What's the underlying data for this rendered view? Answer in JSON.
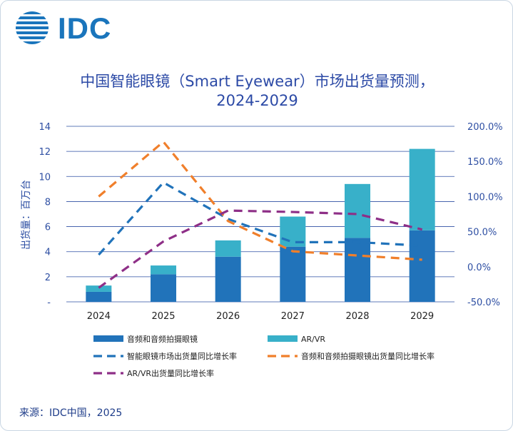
{
  "brand": {
    "logo_text": "IDC"
  },
  "title_line1": "中国智能眼镜（Smart Eyewear）市场出货量预测，",
  "title_line2": "2024-2029",
  "source": "来源：IDC中国，2025",
  "chart_data": {
    "type": "bar",
    "stacked": true,
    "categories": [
      "2024",
      "2025",
      "2026",
      "2027",
      "2028",
      "2029"
    ],
    "ylabel": "出货量：百万台",
    "ylim": [
      0,
      14
    ],
    "y_ticks": [
      "-",
      "2",
      "4",
      "6",
      "8",
      "10",
      "12",
      "14"
    ],
    "y2lim": [
      -50,
      200
    ],
    "y2_ticks": [
      "-50.0%",
      "0.0%",
      "50.0%",
      "100.0%",
      "150.0%",
      "200.0%"
    ],
    "grid": true,
    "legend_position": "bottom",
    "series": [
      {
        "name": "音频和音频拍摄眼镜",
        "kind": "bar",
        "axis": "left",
        "color": "#2173ba",
        "values": [
          0.8,
          2.2,
          3.6,
          4.4,
          5.1,
          5.7
        ]
      },
      {
        "name": "AR/VR",
        "kind": "bar",
        "axis": "left",
        "color": "#38b0c9",
        "values": [
          0.5,
          0.7,
          1.3,
          2.4,
          4.3,
          6.5
        ]
      },
      {
        "name": "智能眼镜市场出货量同比增长率",
        "kind": "line",
        "dashed": true,
        "axis": "right",
        "color": "#2173ba",
        "values": [
          17,
          120,
          68,
          35,
          35,
          30
        ]
      },
      {
        "name": "音频和音频拍摄眼镜出货量同比增长率",
        "kind": "line",
        "dashed": true,
        "axis": "right",
        "color": "#f07f2b",
        "values": [
          100,
          178,
          65,
          22,
          16,
          10
        ]
      },
      {
        "name": "AR/VR出货量同比增长率",
        "kind": "line",
        "dashed": true,
        "axis": "right",
        "color": "#8e2f87",
        "values": [
          -30,
          36,
          80,
          78,
          75,
          53
        ]
      }
    ]
  }
}
